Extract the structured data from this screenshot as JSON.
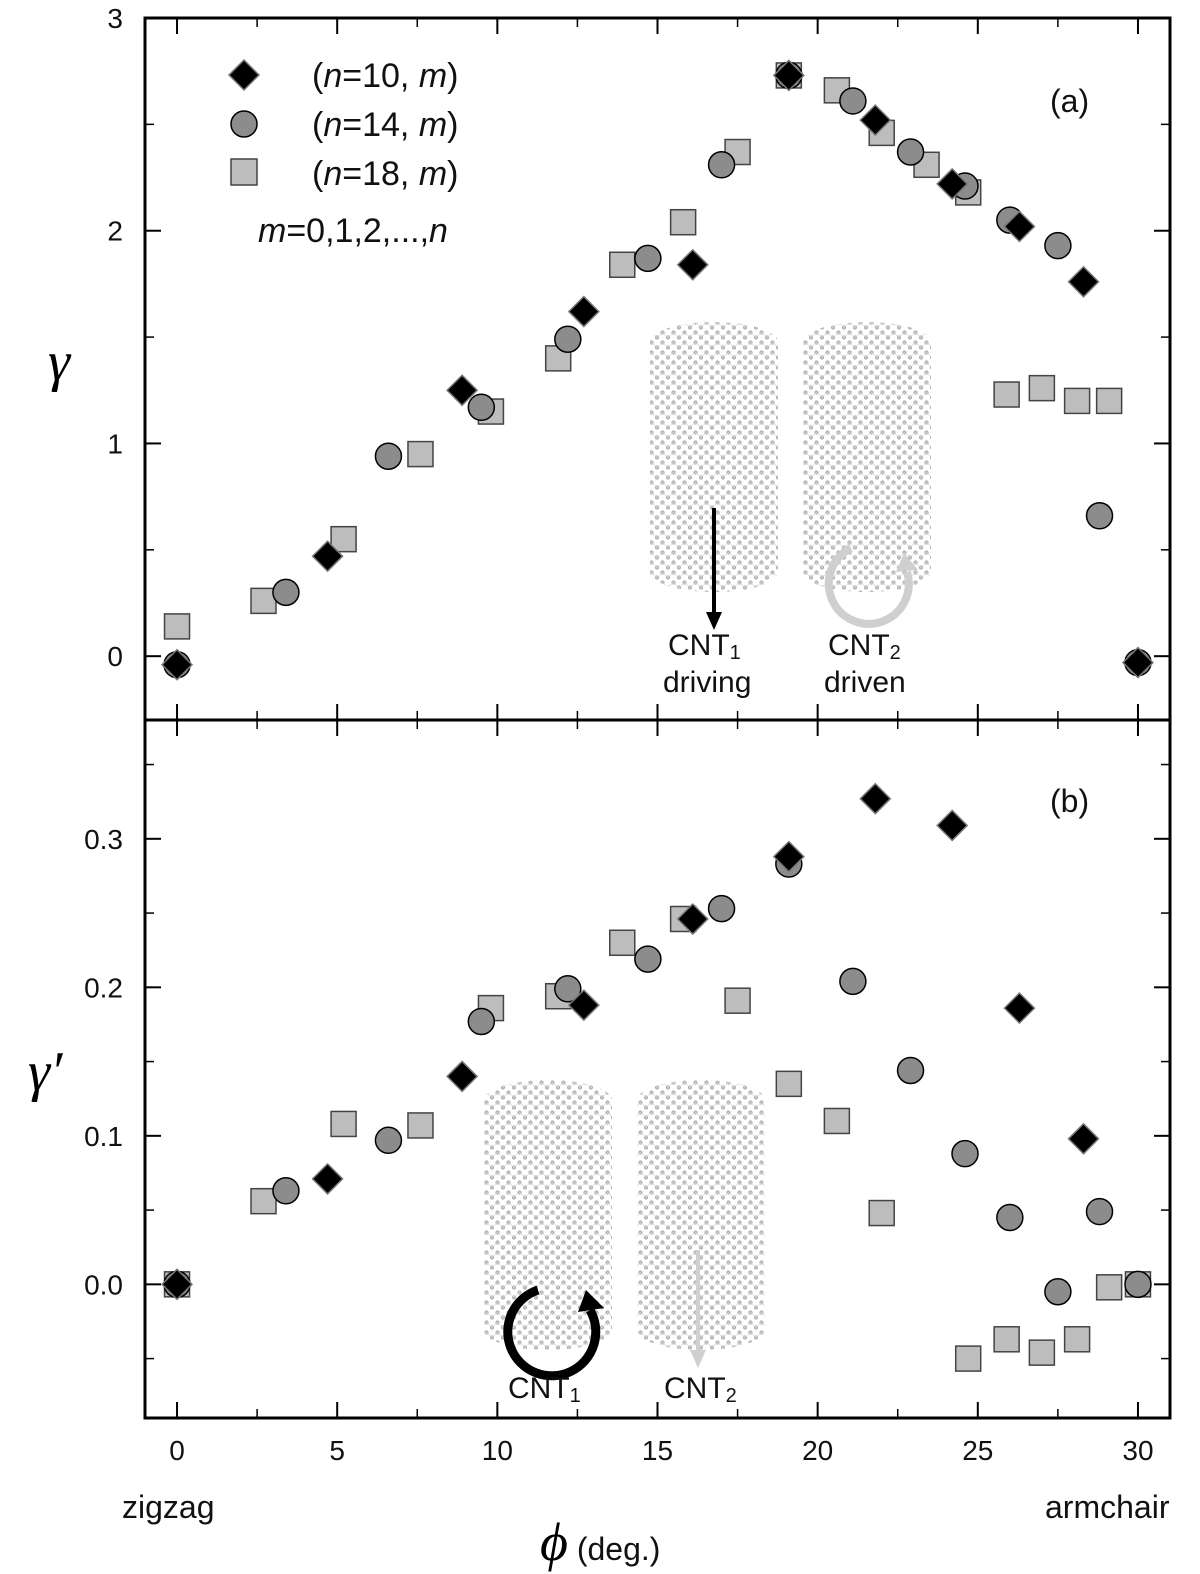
{
  "chart_data": [
    {
      "type": "scatter",
      "panel_label": "(a)",
      "ylabel": "γ",
      "ylim": [
        -0.3,
        3.0
      ],
      "yticks": [
        "0",
        "1",
        "2",
        "3"
      ],
      "xlim": [
        -1.0,
        31.0
      ],
      "legend": {
        "position": "top-left",
        "entries": [
          {
            "prefix": "(",
            "n": "n",
            "eq": "=10, ",
            "m": "m",
            "suffix": ")"
          },
          {
            "prefix": "(",
            "n": "n",
            "eq": "=14, ",
            "m": "m",
            "suffix": ")"
          },
          {
            "prefix": "(",
            "n": "n",
            "eq": "=18, ",
            "m": "m",
            "suffix": ")"
          }
        ],
        "note_m": "m",
        "note_mid": "=0,1,2,...,",
        "note_n": "n"
      },
      "series": [
        {
          "name": "(n=10, m)",
          "marker": "diamond",
          "color": "#000000",
          "points": [
            [
              0,
              -0.04
            ],
            [
              4.7,
              0.47
            ],
            [
              8.9,
              1.25
            ],
            [
              12.7,
              1.62
            ],
            [
              16.1,
              1.84
            ],
            [
              19.1,
              2.73
            ],
            [
              21.8,
              2.52
            ],
            [
              24.2,
              2.22
            ],
            [
              26.3,
              2.02
            ],
            [
              28.3,
              1.76
            ],
            [
              30,
              -0.03
            ]
          ]
        },
        {
          "name": "(n=14, m)",
          "marker": "circle",
          "color": "#8c8c8c",
          "points": [
            [
              0,
              -0.04
            ],
            [
              3.4,
              0.3
            ],
            [
              6.6,
              0.94
            ],
            [
              9.5,
              1.17
            ],
            [
              12.2,
              1.49
            ],
            [
              14.7,
              1.87
            ],
            [
              17.0,
              2.31
            ],
            [
              19.1,
              2.73
            ],
            [
              21.1,
              2.61
            ],
            [
              22.9,
              2.37
            ],
            [
              24.6,
              2.21
            ],
            [
              26.0,
              2.05
            ],
            [
              27.5,
              1.93
            ],
            [
              28.8,
              0.66
            ],
            [
              30,
              -0.03
            ]
          ]
        },
        {
          "name": "(n=18, m)",
          "marker": "square",
          "color": "#bdbdbd",
          "points": [
            [
              0,
              0.14
            ],
            [
              2.7,
              0.26
            ],
            [
              5.2,
              0.55
            ],
            [
              7.6,
              0.95
            ],
            [
              9.8,
              1.15
            ],
            [
              11.9,
              1.4
            ],
            [
              13.9,
              1.84
            ],
            [
              15.8,
              2.04
            ],
            [
              17.5,
              2.37
            ],
            [
              19.1,
              2.73
            ],
            [
              20.6,
              2.66
            ],
            [
              22.0,
              2.46
            ],
            [
              23.4,
              2.31
            ],
            [
              24.7,
              2.18
            ],
            [
              25.9,
              1.23
            ],
            [
              27.0,
              1.26
            ],
            [
              28.1,
              1.2
            ],
            [
              29.1,
              1.2
            ]
          ]
        }
      ],
      "inset": {
        "left_label_main": "CNT",
        "left_label_sub": "1",
        "left_label_role": "driving",
        "right_label_main": "CNT",
        "right_label_sub": "2",
        "right_label_role": "driven"
      }
    },
    {
      "type": "scatter",
      "panel_label": "(b)",
      "ylabel": "γ′",
      "ylim": [
        -0.09,
        0.38
      ],
      "yticks": [
        "0.0",
        "0.1",
        "0.2",
        "0.3"
      ],
      "xlim": [
        -1.0,
        31.0
      ],
      "xticks": [
        "0",
        "5",
        "10",
        "15",
        "20",
        "25",
        "30"
      ],
      "xlabel_symbol": "ϕ",
      "xlabel_unit": " (deg.)",
      "xlabel_left": "zigzag",
      "xlabel_right": "armchair",
      "series": [
        {
          "name": "(n=10, m)",
          "marker": "diamond",
          "color": "#000000",
          "points": [
            [
              0,
              0.0
            ],
            [
              4.7,
              0.071
            ],
            [
              8.9,
              0.14
            ],
            [
              12.7,
              0.188
            ],
            [
              16.1,
              0.246
            ],
            [
              19.1,
              0.288
            ],
            [
              21.8,
              0.327
            ],
            [
              24.2,
              0.309
            ],
            [
              26.3,
              0.186
            ],
            [
              28.3,
              0.098
            ]
          ]
        },
        {
          "name": "(n=14, m)",
          "marker": "circle",
          "color": "#8c8c8c",
          "points": [
            [
              0,
              0.0
            ],
            [
              3.4,
              0.063
            ],
            [
              6.6,
              0.097
            ],
            [
              9.5,
              0.177
            ],
            [
              12.2,
              0.199
            ],
            [
              14.7,
              0.219
            ],
            [
              17.0,
              0.253
            ],
            [
              19.1,
              0.283
            ],
            [
              21.1,
              0.204
            ],
            [
              22.9,
              0.144
            ],
            [
              24.6,
              0.088
            ],
            [
              26.0,
              0.045
            ],
            [
              27.5,
              -0.005
            ],
            [
              28.8,
              0.049
            ],
            [
              30,
              0.0
            ]
          ]
        },
        {
          "name": "(n=18, m)",
          "marker": "square",
          "color": "#bdbdbd",
          "points": [
            [
              0,
              0.0
            ],
            [
              2.7,
              0.056
            ],
            [
              5.2,
              0.108
            ],
            [
              7.6,
              0.107
            ],
            [
              9.8,
              0.186
            ],
            [
              11.9,
              0.194
            ],
            [
              13.9,
              0.23
            ],
            [
              15.8,
              0.246
            ],
            [
              17.5,
              0.191
            ],
            [
              19.1,
              0.135
            ],
            [
              20.6,
              0.11
            ],
            [
              22.0,
              0.048
            ],
            [
              24.7,
              -0.05
            ],
            [
              25.9,
              -0.037
            ],
            [
              27.0,
              -0.046
            ],
            [
              28.1,
              -0.037
            ],
            [
              29.1,
              -0.002
            ],
            [
              30,
              0.0
            ]
          ]
        }
      ],
      "inset": {
        "left_label_main": "CNT",
        "left_label_sub": "1",
        "right_label_main": "CNT",
        "right_label_sub": "2"
      }
    }
  ],
  "colors": {
    "axis": "#000000",
    "diamond": "#000000",
    "circle": "#8c8c8c",
    "square": "#bdbdbd",
    "tube": "#9a9a9a",
    "light_arrow": "#c8c8c8"
  }
}
